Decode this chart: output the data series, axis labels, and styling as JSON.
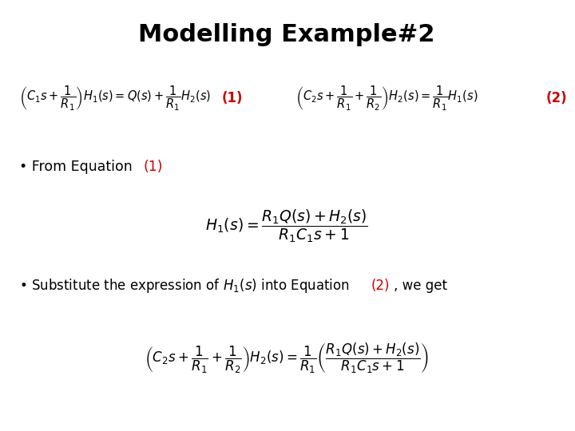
{
  "title": "Modelling Example#2",
  "title_fontsize": 22,
  "title_fontweight": "bold",
  "background_color": "#ffffff",
  "text_color": "#000000",
  "red_color": "#cc0000",
  "eq1_label": "(1)",
  "eq2_label": "(2)",
  "bullet1_text": "• From Equation ",
  "bullet1_ref": "(1)",
  "bullet2_ref": "(2)",
  "bullet2_end": ", we get"
}
